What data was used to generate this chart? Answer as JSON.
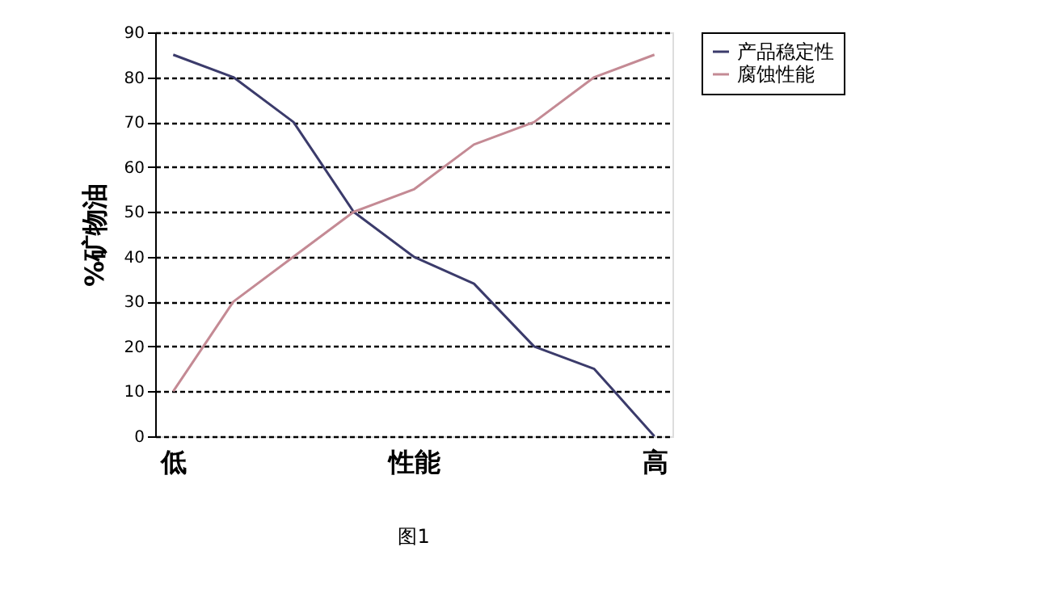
{
  "chart_data": {
    "type": "line",
    "ylabel": "%矿物油",
    "categories": [
      "低",
      null,
      null,
      null,
      "性能",
      null,
      null,
      null,
      "高"
    ],
    "series": [
      {
        "name": "产品稳定性",
        "color": "#3b3b6b",
        "values": [
          85,
          80,
          70,
          50,
          40,
          34,
          20,
          15,
          0
        ]
      },
      {
        "name": "腐蚀性能",
        "color": "#c48a94",
        "values": [
          10,
          30,
          40,
          50,
          55,
          65,
          70,
          80,
          85
        ]
      }
    ],
    "ylim": [
      0,
      90
    ],
    "yticks": [
      0,
      10,
      20,
      30,
      40,
      50,
      60,
      70,
      80,
      90
    ],
    "grid": "y",
    "legend": "right",
    "marker": "none",
    "line_style": "solid",
    "annotations": [
      "图1"
    ]
  }
}
